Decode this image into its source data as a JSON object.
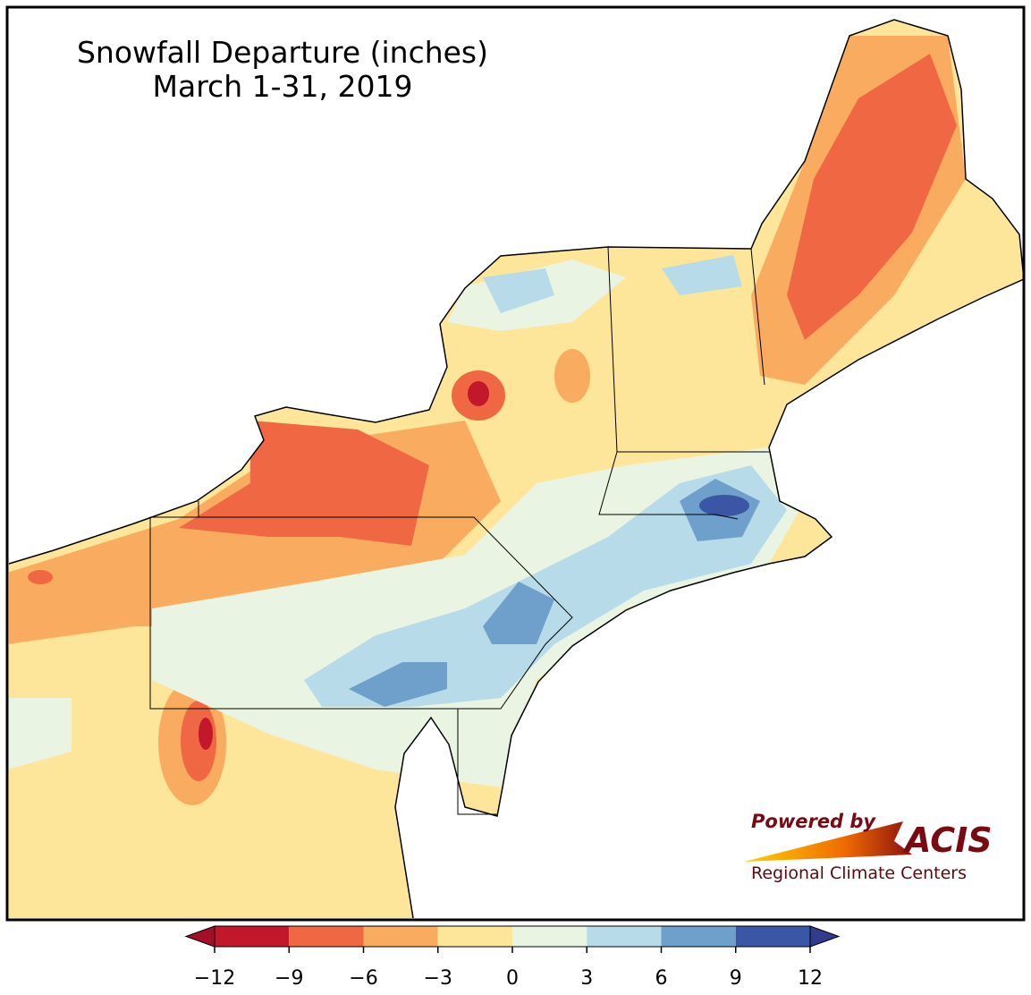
{
  "title": "Snowfall Departure (inches)",
  "subtitle": "March 1-31, 2019",
  "colorbar": {
    "ticks": [
      {
        "value": -12,
        "label": "−12"
      },
      {
        "value": -9,
        "label": "−9"
      },
      {
        "value": -6,
        "label": "−6"
      },
      {
        "value": -3,
        "label": "−3"
      },
      0,
      3,
      6,
      9,
      12
    ],
    "colors": [
      "#c3182b",
      "#ef6843",
      "#f9ac5f",
      "#fde699",
      "#eaf4e2",
      "#b7dbe8",
      "#6ea0cb",
      "#3a56a4"
    ],
    "extend_low_color": "#a50f26",
    "extend_high_color": "#323c8f"
  },
  "branding": {
    "powered_by": "Powered by",
    "name": "ACIS",
    "org": "Regional Climate Centers"
  }
}
